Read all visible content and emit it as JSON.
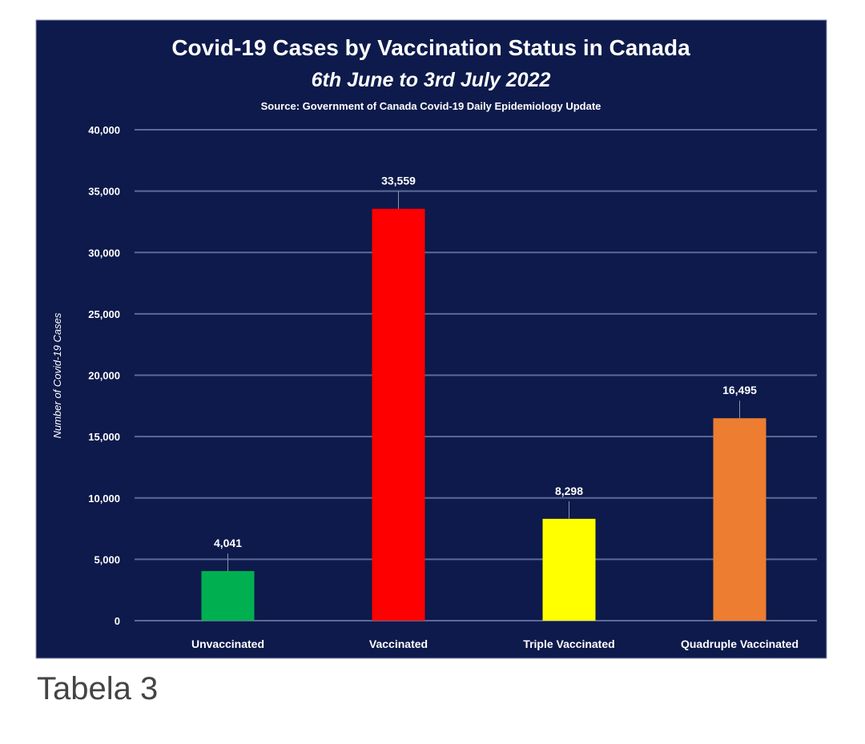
{
  "chart_data": {
    "type": "bar",
    "title": "Covid-19 Cases by Vaccination Status in Canada",
    "subtitle": "6th June to 3rd July 2022",
    "source": "Source: Government of Canada  Covid-19 Daily Epidemiology Update",
    "xlabel": "",
    "ylabel": "Number of Covid-19 Cases",
    "ylim": [
      0,
      40000
    ],
    "yticks": [
      0,
      5000,
      10000,
      15000,
      20000,
      25000,
      30000,
      35000,
      40000
    ],
    "ytick_labels": [
      "0",
      "5,000",
      "10,000",
      "15,000",
      "20,000",
      "25,000",
      "30,000",
      "35,000",
      "40,000"
    ],
    "grid": true,
    "categories": [
      "Unvaccinated",
      "Vaccinated",
      "Triple Vaccinated",
      "Quadruple Vaccinated"
    ],
    "values": [
      4041,
      33559,
      8298,
      16495
    ],
    "value_labels": [
      "4,041",
      "33,559",
      "8,298",
      "16,495"
    ],
    "colors": [
      "#00b050",
      "#ff0000",
      "#ffff00",
      "#ed7d31"
    ],
    "background": "#0d1a4b"
  },
  "caption": "Tabela 3"
}
